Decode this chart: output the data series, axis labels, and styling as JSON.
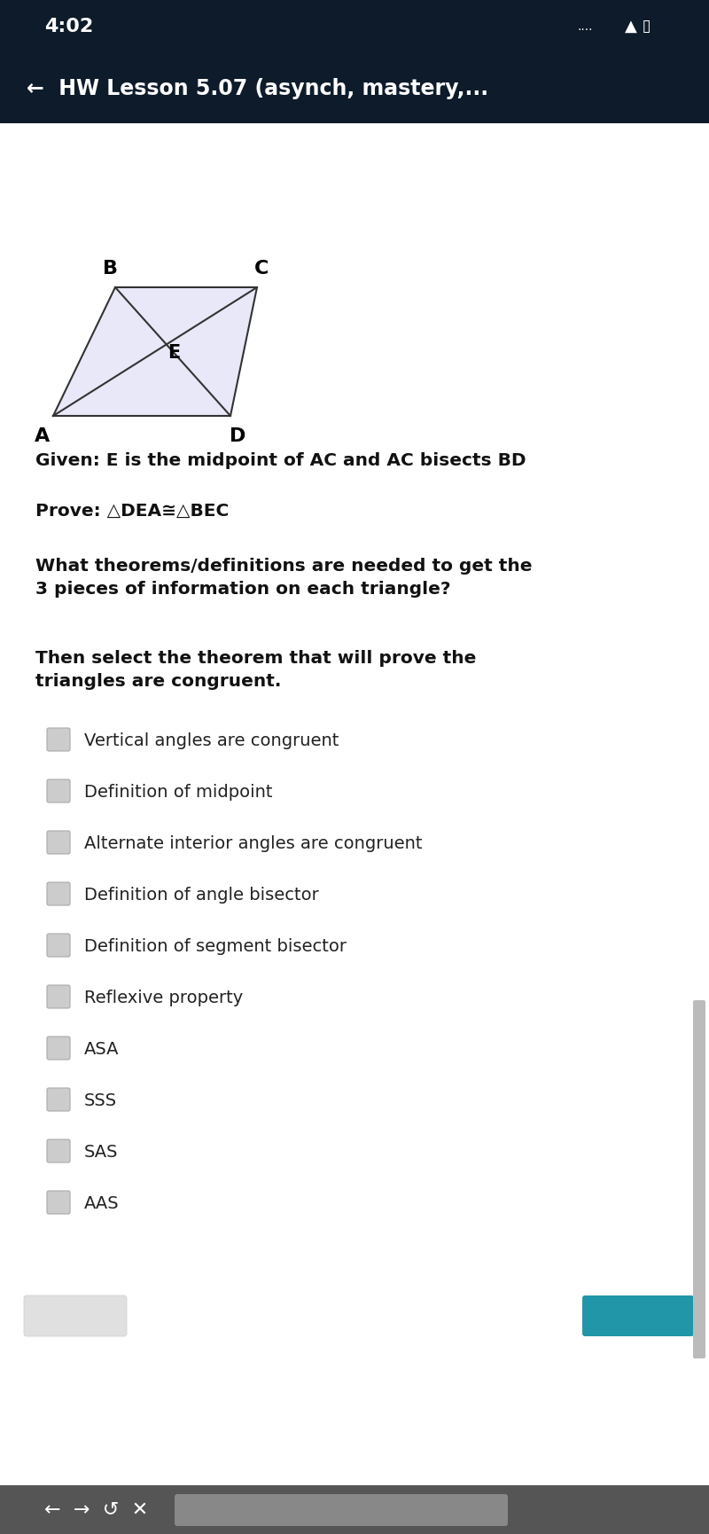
{
  "status_bar_bg": "#0d1b2a",
  "status_time": "4:02",
  "nav_bar_bg": "#0d1b2a",
  "nav_bar_text": "←  HW Lesson 5.07 (asynch, mastery,...",
  "content_bg": "#ffffff",
  "figure_fill": "#e8e8f8",
  "figure_stroke": "#333333",
  "given_text": "Given: E is the midpoint of AC and AC bisects BD",
  "prove_text": "Prove: △DEA≅△BEC",
  "question1": "What theorems/definitions are needed to get the\n3 pieces of information on each triangle?",
  "question2": "Then select the theorem that will prove the\ntriangles are congruent.",
  "options": [
    "Vertical angles are congruent",
    "Definition of midpoint",
    "Alternate interior angles are congruent",
    "Definition of angle bisector",
    "Definition of segment bisector",
    "Reflexive property",
    "ASA",
    "SSS",
    "SAS",
    "AAS"
  ],
  "checkbox_color": "#cccccc",
  "scrollbar_color": "#bbbbbb",
  "bottom_bar_bg": "#555555",
  "bottom_button_bg": "#2196a8"
}
